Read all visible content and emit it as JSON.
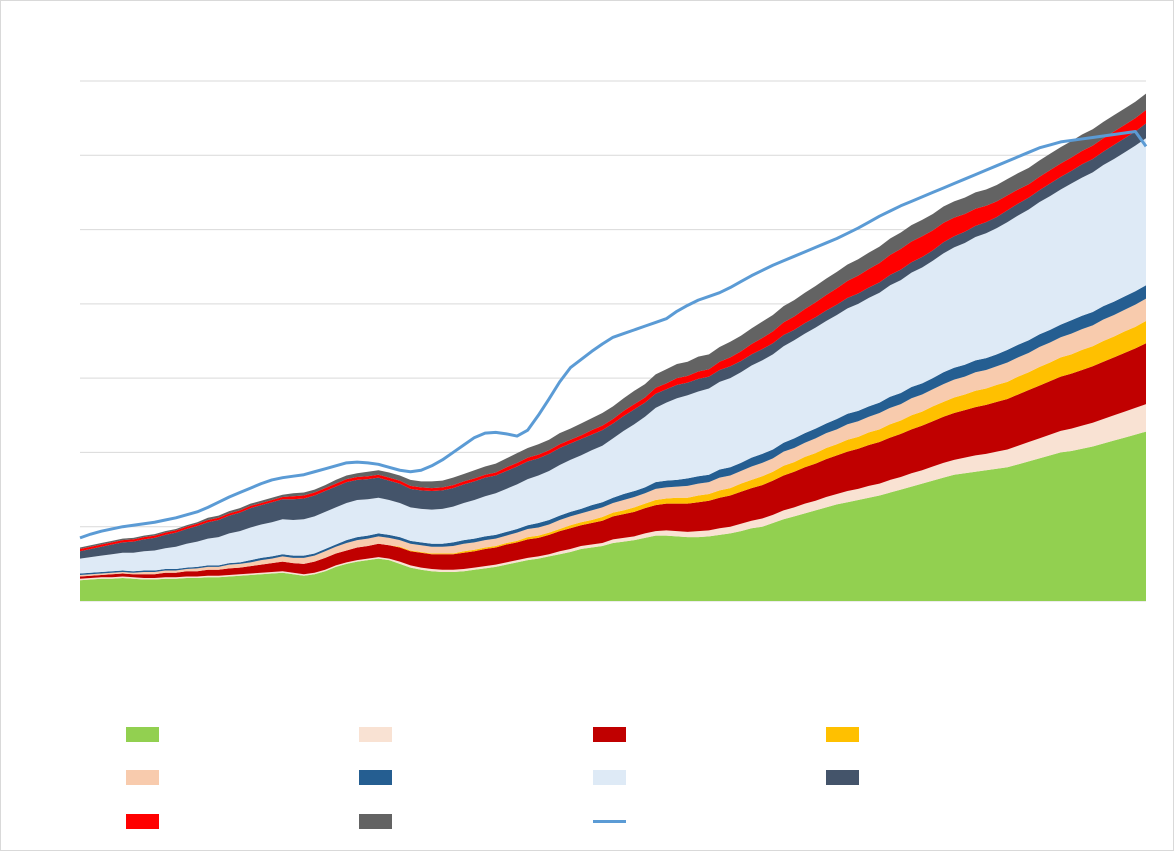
{
  "chart_data": {
    "type": "area",
    "title": "",
    "xlabel": "",
    "ylabel": "",
    "ylim": [
      0,
      7
    ],
    "grid": true,
    "legend_placement": "bottom",
    "x": [
      0,
      1,
      2,
      3,
      4,
      5,
      6,
      7,
      8,
      9,
      10,
      11,
      12,
      13,
      14,
      15,
      16,
      17,
      18,
      19,
      20,
      21,
      22,
      23,
      24,
      25,
      26,
      27,
      28,
      29,
      30,
      31,
      32,
      33,
      34,
      35,
      36,
      37,
      38,
      39,
      40,
      41,
      42,
      43,
      44,
      45,
      46,
      47,
      48,
      49,
      50,
      51,
      52,
      53,
      54,
      55,
      56,
      57,
      58,
      59,
      60,
      61,
      62,
      63,
      64,
      65,
      66,
      67,
      68,
      69,
      70,
      71,
      72,
      73,
      74,
      75,
      76,
      77,
      78,
      79,
      80,
      81,
      82,
      83,
      84,
      85,
      86,
      87,
      88,
      89,
      90,
      91,
      92,
      93,
      94,
      95,
      96,
      97,
      98,
      99,
      100
    ],
    "series": [
      {
        "name": "",
        "color": "#92d050",
        "values": [
          0.28,
          0.29,
          0.3,
          0.3,
          0.31,
          0.3,
          0.29,
          0.29,
          0.3,
          0.3,
          0.31,
          0.31,
          0.32,
          0.32,
          0.33,
          0.34,
          0.35,
          0.36,
          0.37,
          0.38,
          0.36,
          0.34,
          0.36,
          0.4,
          0.46,
          0.5,
          0.53,
          0.55,
          0.57,
          0.55,
          0.5,
          0.45,
          0.42,
          0.4,
          0.39,
          0.39,
          0.4,
          0.42,
          0.44,
          0.46,
          0.49,
          0.52,
          0.55,
          0.57,
          0.6,
          0.63,
          0.66,
          0.7,
          0.72,
          0.74,
          0.78,
          0.8,
          0.82,
          0.85,
          0.88,
          0.88,
          0.87,
          0.86,
          0.86,
          0.87,
          0.89,
          0.91,
          0.94,
          0.98,
          1.0,
          1.05,
          1.1,
          1.14,
          1.18,
          1.22,
          1.26,
          1.3,
          1.33,
          1.36,
          1.39,
          1.42,
          1.46,
          1.5,
          1.54,
          1.58,
          1.62,
          1.66,
          1.7,
          1.72,
          1.74,
          1.76,
          1.78,
          1.8,
          1.84,
          1.88,
          1.92,
          1.96,
          2.0,
          2.02,
          2.05,
          2.08,
          2.12,
          2.16,
          2.2,
          2.24,
          2.28
        ]
      },
      {
        "name": "",
        "color": "#f9e2d3",
        "values": [
          0.02,
          0.02,
          0.02,
          0.02,
          0.02,
          0.02,
          0.02,
          0.02,
          0.02,
          0.02,
          0.02,
          0.02,
          0.02,
          0.02,
          0.02,
          0.02,
          0.02,
          0.02,
          0.02,
          0.02,
          0.02,
          0.02,
          0.02,
          0.02,
          0.02,
          0.02,
          0.02,
          0.02,
          0.02,
          0.02,
          0.03,
          0.03,
          0.03,
          0.03,
          0.03,
          0.03,
          0.03,
          0.03,
          0.03,
          0.03,
          0.03,
          0.03,
          0.03,
          0.03,
          0.03,
          0.04,
          0.04,
          0.04,
          0.04,
          0.04,
          0.05,
          0.05,
          0.05,
          0.06,
          0.06,
          0.07,
          0.07,
          0.07,
          0.08,
          0.08,
          0.09,
          0.09,
          0.1,
          0.1,
          0.11,
          0.11,
          0.12,
          0.12,
          0.13,
          0.13,
          0.14,
          0.14,
          0.15,
          0.15,
          0.16,
          0.16,
          0.17,
          0.17,
          0.18,
          0.18,
          0.19,
          0.2,
          0.2,
          0.21,
          0.22,
          0.22,
          0.23,
          0.24,
          0.25,
          0.26,
          0.27,
          0.28,
          0.29,
          0.3,
          0.31,
          0.32,
          0.33,
          0.34,
          0.35,
          0.36,
          0.37
        ]
      },
      {
        "name": "",
        "color": "#c00000",
        "values": [
          0.03,
          0.03,
          0.03,
          0.04,
          0.04,
          0.04,
          0.05,
          0.05,
          0.06,
          0.06,
          0.07,
          0.07,
          0.08,
          0.08,
          0.09,
          0.09,
          0.1,
          0.11,
          0.12,
          0.13,
          0.13,
          0.14,
          0.15,
          0.16,
          0.16,
          0.16,
          0.17,
          0.17,
          0.18,
          0.18,
          0.19,
          0.19,
          0.2,
          0.2,
          0.21,
          0.21,
          0.22,
          0.22,
          0.23,
          0.23,
          0.24,
          0.24,
          0.25,
          0.25,
          0.26,
          0.27,
          0.28,
          0.28,
          0.29,
          0.3,
          0.31,
          0.32,
          0.33,
          0.34,
          0.35,
          0.36,
          0.37,
          0.38,
          0.39,
          0.4,
          0.41,
          0.42,
          0.43,
          0.44,
          0.45,
          0.46,
          0.47,
          0.48,
          0.49,
          0.5,
          0.51,
          0.52,
          0.53,
          0.54,
          0.55,
          0.56,
          0.57,
          0.58,
          0.59,
          0.6,
          0.61,
          0.62,
          0.63,
          0.64,
          0.65,
          0.66,
          0.67,
          0.68,
          0.69,
          0.7,
          0.71,
          0.72,
          0.73,
          0.74,
          0.75,
          0.76,
          0.77,
          0.78,
          0.79,
          0.8,
          0.82
        ]
      },
      {
        "name": "",
        "color": "#ffc000",
        "values": [
          0,
          0,
          0,
          0,
          0,
          0,
          0,
          0,
          0,
          0,
          0,
          0,
          0,
          0,
          0,
          0,
          0,
          0,
          0,
          0,
          0,
          0,
          0,
          0,
          0,
          0,
          0,
          0,
          0,
          0,
          0.01,
          0.01,
          0.01,
          0.01,
          0.01,
          0.01,
          0.02,
          0.02,
          0.02,
          0.02,
          0.02,
          0.02,
          0.03,
          0.03,
          0.03,
          0.03,
          0.04,
          0.04,
          0.04,
          0.05,
          0.05,
          0.05,
          0.06,
          0.06,
          0.07,
          0.07,
          0.08,
          0.08,
          0.09,
          0.09,
          0.1,
          0.1,
          0.11,
          0.11,
          0.12,
          0.12,
          0.13,
          0.13,
          0.14,
          0.14,
          0.15,
          0.15,
          0.16,
          0.16,
          0.17,
          0.17,
          0.18,
          0.18,
          0.19,
          0.19,
          0.2,
          0.2,
          0.21,
          0.21,
          0.22,
          0.22,
          0.23,
          0.23,
          0.24,
          0.24,
          0.25,
          0.25,
          0.26,
          0.26,
          0.27,
          0.27,
          0.28,
          0.28,
          0.29,
          0.29,
          0.3
        ]
      },
      {
        "name": "",
        "color": "#f8cbad",
        "values": [
          0.02,
          0.02,
          0.02,
          0.02,
          0.02,
          0.02,
          0.03,
          0.03,
          0.03,
          0.03,
          0.03,
          0.04,
          0.04,
          0.04,
          0.05,
          0.05,
          0.05,
          0.06,
          0.06,
          0.07,
          0.07,
          0.08,
          0.08,
          0.09,
          0.09,
          0.1,
          0.1,
          0.1,
          0.1,
          0.1,
          0.09,
          0.09,
          0.09,
          0.09,
          0.09,
          0.1,
          0.1,
          0.1,
          0.1,
          0.1,
          0.1,
          0.11,
          0.11,
          0.11,
          0.11,
          0.12,
          0.12,
          0.12,
          0.13,
          0.13,
          0.13,
          0.14,
          0.14,
          0.14,
          0.15,
          0.15,
          0.15,
          0.16,
          0.16,
          0.16,
          0.17,
          0.17,
          0.17,
          0.18,
          0.18,
          0.18,
          0.19,
          0.19,
          0.19,
          0.2,
          0.2,
          0.2,
          0.21,
          0.21,
          0.21,
          0.22,
          0.22,
          0.22,
          0.23,
          0.23,
          0.23,
          0.24,
          0.24,
          0.24,
          0.25,
          0.25,
          0.25,
          0.26,
          0.26,
          0.26,
          0.27,
          0.27,
          0.27,
          0.28,
          0.28,
          0.28,
          0.29,
          0.29,
          0.29,
          0.3,
          0.3
        ]
      },
      {
        "name": "",
        "color": "#255e91",
        "values": [
          0.02,
          0.02,
          0.02,
          0.02,
          0.02,
          0.02,
          0.02,
          0.02,
          0.02,
          0.02,
          0.02,
          0.02,
          0.02,
          0.02,
          0.02,
          0.02,
          0.03,
          0.03,
          0.03,
          0.03,
          0.03,
          0.03,
          0.03,
          0.03,
          0.03,
          0.04,
          0.04,
          0.04,
          0.04,
          0.04,
          0.04,
          0.04,
          0.04,
          0.04,
          0.04,
          0.05,
          0.05,
          0.05,
          0.05,
          0.05,
          0.05,
          0.05,
          0.05,
          0.06,
          0.06,
          0.06,
          0.06,
          0.06,
          0.07,
          0.07,
          0.07,
          0.08,
          0.08,
          0.08,
          0.09,
          0.09,
          0.09,
          0.1,
          0.1,
          0.1,
          0.11,
          0.11,
          0.11,
          0.12,
          0.12,
          0.12,
          0.12,
          0.13,
          0.13,
          0.13,
          0.13,
          0.14,
          0.14,
          0.14,
          0.14,
          0.14,
          0.15,
          0.15,
          0.15,
          0.15,
          0.15,
          0.16,
          0.16,
          0.16,
          0.16,
          0.16,
          0.16,
          0.17,
          0.17,
          0.17,
          0.17,
          0.17,
          0.17,
          0.18,
          0.18,
          0.18,
          0.18,
          0.18,
          0.18,
          0.18,
          0.18
        ]
      },
      {
        "name": "",
        "color": "#deeaf6",
        "values": [
          0.2,
          0.21,
          0.22,
          0.23,
          0.24,
          0.25,
          0.26,
          0.27,
          0.28,
          0.3,
          0.32,
          0.34,
          0.36,
          0.38,
          0.4,
          0.42,
          0.44,
          0.45,
          0.46,
          0.47,
          0.48,
          0.49,
          0.5,
          0.5,
          0.5,
          0.5,
          0.5,
          0.49,
          0.48,
          0.47,
          0.46,
          0.45,
          0.45,
          0.46,
          0.47,
          0.48,
          0.5,
          0.52,
          0.54,
          0.56,
          0.58,
          0.6,
          0.62,
          0.64,
          0.66,
          0.68,
          0.7,
          0.72,
          0.74,
          0.76,
          0.8,
          0.85,
          0.9,
          0.95,
          1.0,
          1.05,
          1.1,
          1.12,
          1.14,
          1.16,
          1.18,
          1.2,
          1.22,
          1.24,
          1.26,
          1.28,
          1.3,
          1.32,
          1.34,
          1.36,
          1.38,
          1.4,
          1.42,
          1.44,
          1.46,
          1.48,
          1.5,
          1.52,
          1.54,
          1.56,
          1.58,
          1.6,
          1.62,
          1.64,
          1.66,
          1.68,
          1.7,
          1.72,
          1.74,
          1.76,
          1.78,
          1.8,
          1.82,
          1.84,
          1.86,
          1.88,
          1.9,
          1.92,
          1.94,
          1.96,
          1.98
        ]
      },
      {
        "name": "",
        "color": "#44546a",
        "values": [
          0.1,
          0.11,
          0.12,
          0.13,
          0.14,
          0.15,
          0.16,
          0.17,
          0.18,
          0.19,
          0.2,
          0.21,
          0.22,
          0.23,
          0.24,
          0.25,
          0.26,
          0.26,
          0.27,
          0.27,
          0.28,
          0.28,
          0.28,
          0.28,
          0.28,
          0.28,
          0.27,
          0.27,
          0.27,
          0.26,
          0.26,
          0.25,
          0.25,
          0.25,
          0.25,
          0.25,
          0.25,
          0.25,
          0.25,
          0.24,
          0.24,
          0.24,
          0.24,
          0.23,
          0.23,
          0.23,
          0.22,
          0.22,
          0.21,
          0.21,
          0.2,
          0.2,
          0.2,
          0.19,
          0.19,
          0.18,
          0.18,
          0.17,
          0.17,
          0.16,
          0.16,
          0.16,
          0.15,
          0.15,
          0.15,
          0.15,
          0.15,
          0.14,
          0.14,
          0.14,
          0.14,
          0.14,
          0.14,
          0.14,
          0.14,
          0.14,
          0.14,
          0.14,
          0.14,
          0.14,
          0.14,
          0.15,
          0.15,
          0.15,
          0.15,
          0.15,
          0.15,
          0.16,
          0.16,
          0.16,
          0.16,
          0.17,
          0.17,
          0.17,
          0.18,
          0.18,
          0.18,
          0.19,
          0.19,
          0.19,
          0.2
        ]
      },
      {
        "name": "",
        "color": "#ff0000",
        "values": [
          0.03,
          0.03,
          0.03,
          0.03,
          0.03,
          0.03,
          0.03,
          0.03,
          0.03,
          0.03,
          0.03,
          0.03,
          0.03,
          0.03,
          0.03,
          0.03,
          0.03,
          0.03,
          0.03,
          0.03,
          0.04,
          0.04,
          0.04,
          0.04,
          0.04,
          0.04,
          0.04,
          0.04,
          0.04,
          0.04,
          0.04,
          0.04,
          0.04,
          0.04,
          0.04,
          0.04,
          0.04,
          0.04,
          0.04,
          0.04,
          0.05,
          0.05,
          0.05,
          0.05,
          0.05,
          0.05,
          0.05,
          0.05,
          0.06,
          0.06,
          0.06,
          0.07,
          0.07,
          0.07,
          0.08,
          0.08,
          0.09,
          0.09,
          0.1,
          0.1,
          0.11,
          0.12,
          0.13,
          0.14,
          0.15,
          0.16,
          0.17,
          0.18,
          0.19,
          0.2,
          0.21,
          0.22,
          0.23,
          0.24,
          0.25,
          0.26,
          0.27,
          0.28,
          0.28,
          0.28,
          0.27,
          0.26,
          0.25,
          0.24,
          0.23,
          0.22,
          0.21,
          0.2,
          0.19,
          0.18,
          0.18,
          0.18,
          0.18,
          0.18,
          0.18,
          0.18,
          0.18,
          0.18,
          0.18,
          0.18,
          0.18
        ]
      },
      {
        "name": "",
        "color": "#636363",
        "values": [
          0.02,
          0.02,
          0.02,
          0.02,
          0.02,
          0.02,
          0.02,
          0.02,
          0.02,
          0.02,
          0.02,
          0.02,
          0.03,
          0.03,
          0.03,
          0.03,
          0.03,
          0.03,
          0.03,
          0.03,
          0.04,
          0.04,
          0.04,
          0.04,
          0.05,
          0.05,
          0.05,
          0.06,
          0.06,
          0.07,
          0.07,
          0.08,
          0.08,
          0.09,
          0.09,
          0.1,
          0.1,
          0.11,
          0.11,
          0.12,
          0.12,
          0.13,
          0.13,
          0.14,
          0.14,
          0.15,
          0.15,
          0.16,
          0.16,
          0.17,
          0.17,
          0.17,
          0.18,
          0.18,
          0.18,
          0.19,
          0.19,
          0.19,
          0.2,
          0.2,
          0.2,
          0.21,
          0.21,
          0.21,
          0.22,
          0.22,
          0.22,
          0.22,
          0.22,
          0.22,
          0.22,
          0.22,
          0.22,
          0.22,
          0.22,
          0.22,
          0.22,
          0.22,
          0.22,
          0.22,
          0.22,
          0.22,
          0.22,
          0.22,
          0.22,
          0.22,
          0.22,
          0.22,
          0.22,
          0.22,
          0.22,
          0.22,
          0.22,
          0.22,
          0.22,
          0.22,
          0.22,
          0.22,
          0.22,
          0.22,
          0.22
        ]
      },
      {
        "name": "",
        "color": "#5b9bd5",
        "line": true,
        "values": [
          0.85,
          0.9,
          0.94,
          0.97,
          1.0,
          1.02,
          1.04,
          1.06,
          1.09,
          1.12,
          1.16,
          1.2,
          1.26,
          1.33,
          1.4,
          1.46,
          1.52,
          1.58,
          1.63,
          1.66,
          1.68,
          1.7,
          1.74,
          1.78,
          1.82,
          1.86,
          1.87,
          1.86,
          1.84,
          1.8,
          1.76,
          1.74,
          1.76,
          1.82,
          1.9,
          2.0,
          2.1,
          2.2,
          2.26,
          2.27,
          2.25,
          2.22,
          2.3,
          2.5,
          2.72,
          2.95,
          3.14,
          3.25,
          3.36,
          3.46,
          3.55,
          3.6,
          3.65,
          3.7,
          3.75,
          3.8,
          3.9,
          3.98,
          4.05,
          4.1,
          4.15,
          4.22,
          4.3,
          4.38,
          4.45,
          4.52,
          4.58,
          4.64,
          4.7,
          4.76,
          4.82,
          4.88,
          4.95,
          5.02,
          5.1,
          5.18,
          5.25,
          5.32,
          5.38,
          5.44,
          5.5,
          5.56,
          5.62,
          5.68,
          5.74,
          5.8,
          5.86,
          5.92,
          5.98,
          6.04,
          6.1,
          6.14,
          6.18,
          6.2,
          6.22,
          6.24,
          6.26,
          6.28,
          6.3,
          6.32,
          6.12
        ]
      }
    ]
  }
}
